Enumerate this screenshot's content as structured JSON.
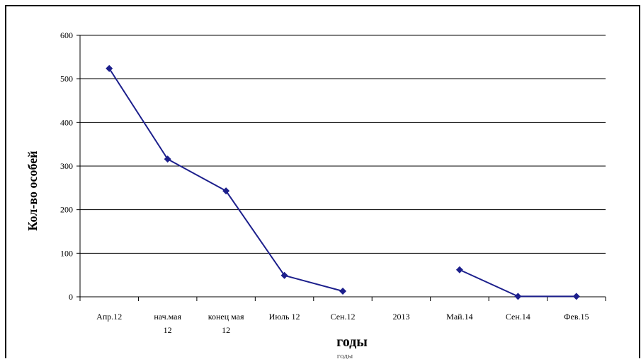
{
  "chart_data": {
    "type": "line",
    "title": "",
    "xlabel": "годы",
    "ylabel": "Кол-во особей",
    "ylim": [
      0,
      600
    ],
    "yticks": [
      0,
      100,
      200,
      300,
      400,
      500,
      600
    ],
    "grid": true,
    "legend": "none",
    "line_color": "#1c1f8c",
    "categories": [
      [
        "Апр.12"
      ],
      [
        "нач.мая",
        "12"
      ],
      [
        "конец мая",
        "12"
      ],
      [
        "Июль 12"
      ],
      [
        "Сен.12"
      ],
      [
        "2013"
      ],
      [
        "Май.14"
      ],
      [
        "Сен.14"
      ],
      [
        "Фев.15"
      ]
    ],
    "series": [
      {
        "values": [
          524,
          316,
          243,
          49,
          13,
          null,
          62,
          1,
          1
        ]
      }
    ]
  },
  "faint_label": "годы"
}
